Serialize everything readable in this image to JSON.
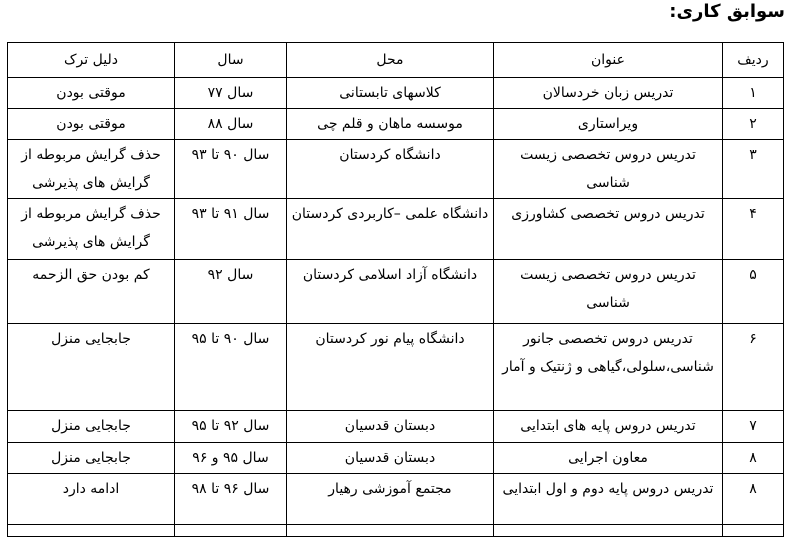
{
  "section_title": "سوابق کاری:",
  "colors": {
    "text": "#000000",
    "border": "#000000",
    "page_bg": "#ffffff"
  },
  "table": {
    "headers": {
      "row_no": "ردیف",
      "title": "عنوان",
      "place": "محل",
      "year": "سال",
      "leave_reason": "دلیل ترک"
    },
    "rows": [
      {
        "row_no": "۱",
        "title": "تدریس زبان خردسالان",
        "place": "کلاسهای تابستانی",
        "year": "سال ۷۷",
        "leave_reason": "موقتی بودن"
      },
      {
        "row_no": "۲",
        "title": "ویراستاری",
        "place": "موسسه ماهان و قلم چی",
        "year": "سال ۸۸",
        "leave_reason": "موقتی بودن"
      },
      {
        "row_no": "۳",
        "title": "تدریس دروس تخصصی زیست شناسی",
        "place": "دانشگاه کردستان",
        "year": "سال ۹۰ تا ۹۳",
        "leave_reason": "حذف گرایش مربوطه از گرایش های پذیرشی"
      },
      {
        "row_no": "۴",
        "title": "تدریس دروس تخصصی کشاورزی",
        "place": "دانشگاه علمی –کاربردی کردستان",
        "year": "سال ۹۱ تا ۹۳",
        "leave_reason": "حذف گرایش مربوطه از گرایش های پذیرشی"
      },
      {
        "row_no": "۵",
        "title": "تدریس دروس تخصصی زیست شناسی",
        "place": "دانشگاه آزاد اسلامی کردستان",
        "year": "سال ۹۲",
        "leave_reason": "کم بودن حق الزحمه"
      },
      {
        "row_no": "۶",
        "title": "تدریس دروس تخصصی جانور شناسی،سلولی،گیاهی و ژنتیک و آمار",
        "place": "دانشگاه پیام نور کردستان",
        "year": "سال ۹۰ تا ۹۵",
        "leave_reason": "جابجایی منزل"
      },
      {
        "row_no": "۷",
        "title": "تدریس دروس پایه های ابتدایی",
        "place": "دبستان قدسیان",
        "year": "سال ۹۲ تا ۹۵",
        "leave_reason": "جابجایی منزل"
      },
      {
        "row_no": "۸",
        "title": "معاون اجرایی",
        "place": "دبستان قدسیان",
        "year": "سال ۹۵ و ۹۶",
        "leave_reason": "جابجایی منزل"
      },
      {
        "row_no": "۸",
        "title": "تدریس دروس پایه دوم و اول ابتدایی",
        "place": "مجتمع آموزشی رهیار",
        "year": "سال ۹۶ تا ۹۸",
        "leave_reason": "ادامه دارد"
      },
      {
        "row_no": "",
        "title": "",
        "place": "",
        "year": "",
        "leave_reason": ""
      }
    ]
  }
}
